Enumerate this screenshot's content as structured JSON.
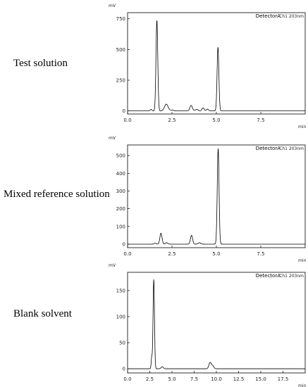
{
  "panels": [
    {
      "label": "Test solution",
      "unit_y": "mV",
      "unit_x": "min",
      "detector": "DetectorA",
      "channel": "Ch1 203nm"
    },
    {
      "label": "Mixed reference solution",
      "unit_y": "mV",
      "unit_x": "min",
      "detector": "DetectorA",
      "channel": "Ch1 203nm"
    },
    {
      "label": "Blank solvent",
      "unit_y": "mV",
      "unit_x": "min",
      "detector": "DetectorA",
      "channel": "Ch1 203nm"
    }
  ],
  "chart_data": [
    {
      "type": "line",
      "title": "",
      "xlabel": "min",
      "ylabel": "mV",
      "xlim": [
        0,
        10
      ],
      "ylim": [
        -25,
        800
      ],
      "x_ticks": [
        0,
        2.5,
        5,
        7.5
      ],
      "x_tick_labels": [
        "0.0",
        "2.5",
        "5.0",
        "7.5"
      ],
      "y_ticks": [
        0,
        250,
        500,
        750
      ],
      "y_tick_labels": [
        "0",
        "250",
        "500",
        "750"
      ],
      "grid": false,
      "baseline": 0,
      "peaks": [
        {
          "x": 1.32,
          "y": 12,
          "w": 0.05
        },
        {
          "x": 1.65,
          "y": 740,
          "w": 0.05
        },
        {
          "x": 2.18,
          "y": 55,
          "w": 0.1
        },
        {
          "x": 2.5,
          "y": 6,
          "w": 0.1
        },
        {
          "x": 3.58,
          "y": 45,
          "w": 0.07
        },
        {
          "x": 3.9,
          "y": 12,
          "w": 0.08
        },
        {
          "x": 4.25,
          "y": 25,
          "w": 0.06
        },
        {
          "x": 4.5,
          "y": 15,
          "w": 0.06
        },
        {
          "x": 5.09,
          "y": 520,
          "w": 0.05
        }
      ]
    },
    {
      "type": "line",
      "title": "",
      "xlabel": "min",
      "ylabel": "mV",
      "xlim": [
        0,
        10
      ],
      "ylim": [
        -20,
        560
      ],
      "x_ticks": [
        0,
        2.5,
        5,
        7.5
      ],
      "x_tick_labels": [
        "0.0",
        "2.5",
        "5.0",
        "7.5"
      ],
      "y_ticks": [
        0,
        100,
        200,
        300,
        400,
        500
      ],
      "y_tick_labels": [
        "0",
        "100",
        "200",
        "300",
        "400",
        "500"
      ],
      "grid": false,
      "baseline": 0,
      "peaks": [
        {
          "x": 1.55,
          "y": 6,
          "w": 0.05
        },
        {
          "x": 1.88,
          "y": 62,
          "w": 0.06
        },
        {
          "x": 2.2,
          "y": 8,
          "w": 0.06
        },
        {
          "x": 3.6,
          "y": 50,
          "w": 0.06
        },
        {
          "x": 4.05,
          "y": 8,
          "w": 0.07
        },
        {
          "x": 5.1,
          "y": 540,
          "w": 0.05
        }
      ]
    },
    {
      "type": "line",
      "title": "",
      "xlabel": "min",
      "ylabel": "mV",
      "xlim": [
        0,
        20
      ],
      "ylim": [
        -8,
        185
      ],
      "x_ticks": [
        0,
        2.5,
        5,
        7.5,
        10,
        12.5,
        15,
        17.5
      ],
      "x_tick_labels": [
        "0.0",
        "2.5",
        "5.0",
        "7.5",
        "10.0",
        "12.5",
        "15.0",
        "17.5"
      ],
      "y_ticks": [
        0,
        50,
        100,
        150
      ],
      "y_tick_labels": [
        "0",
        "50",
        "100",
        "150"
      ],
      "grid": false,
      "baseline": 0,
      "peaks": [
        {
          "x": 2.72,
          "y": 22,
          "w": 0.06
        },
        {
          "x": 2.95,
          "y": 172,
          "w": 0.08
        },
        {
          "x": 3.9,
          "y": 4,
          "w": 0.12
        },
        {
          "x": 9.3,
          "y": 12,
          "w": 0.14
        },
        {
          "x": 9.6,
          "y": 5,
          "w": 0.12
        }
      ]
    }
  ]
}
